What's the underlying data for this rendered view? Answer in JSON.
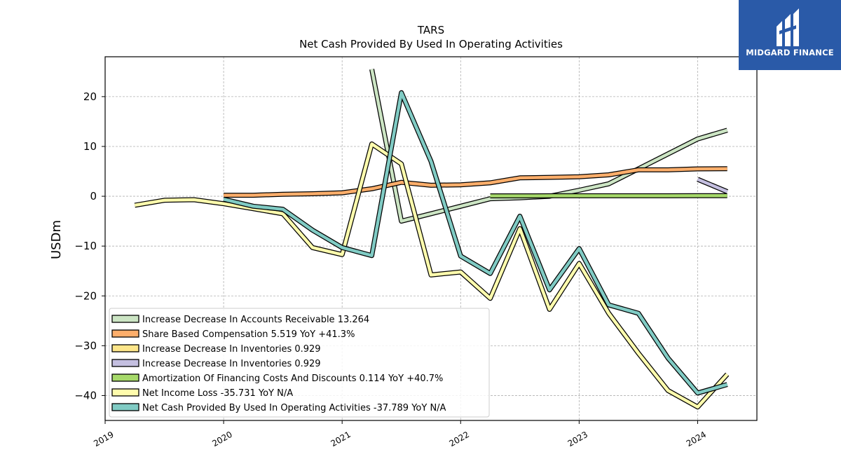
{
  "chart_data": {
    "type": "line",
    "title": "TARS",
    "subtitle": "Net Cash Provided By Used In Operating Activities",
    "ylabel": "USDm",
    "xlabel": "",
    "xlim": [
      2019.0,
      2024.5
    ],
    "ylim": [
      -45,
      28
    ],
    "x_ticks": [
      2019,
      2020,
      2021,
      2022,
      2023,
      2024
    ],
    "x_tick_labels": [
      "2019",
      "2020",
      "2021",
      "2022",
      "2023",
      "2024"
    ],
    "y_ticks": [
      -40,
      -30,
      -20,
      -10,
      0,
      10,
      20
    ],
    "y_tick_labels": [
      "−40",
      "−30",
      "−20",
      "−10",
      "0",
      "10",
      "20"
    ],
    "grid": true,
    "legend_position": "lower-left",
    "series": [
      {
        "name": "Increase Decrease In Accounts Receivable  13.264",
        "color": "#cce5c4",
        "points": [
          [
            2021.25,
            25.5
          ],
          [
            2021.5,
            -5
          ],
          [
            2021.75,
            -3.5
          ],
          [
            2022.0,
            -2
          ],
          [
            2022.25,
            -0.5
          ],
          [
            2022.5,
            -0.3
          ],
          [
            2022.75,
            0
          ],
          [
            2023.0,
            1.2
          ],
          [
            2023.25,
            2.5
          ],
          [
            2023.5,
            5.5
          ],
          [
            2023.75,
            8.5
          ],
          [
            2024.0,
            11.5
          ],
          [
            2024.25,
            13.264
          ]
        ]
      },
      {
        "name": "Share Based Compensation  5.519 YoY +41.3%",
        "color": "#fdae6b",
        "points": [
          [
            2020.0,
            0.2
          ],
          [
            2020.25,
            0.2
          ],
          [
            2020.5,
            0.4
          ],
          [
            2020.75,
            0.5
          ],
          [
            2021.0,
            0.7
          ],
          [
            2021.25,
            1.5
          ],
          [
            2021.5,
            2.8
          ],
          [
            2021.75,
            2.2
          ],
          [
            2022.0,
            2.3
          ],
          [
            2022.25,
            2.7
          ],
          [
            2022.5,
            3.7
          ],
          [
            2022.75,
            3.8
          ],
          [
            2023.0,
            3.9
          ],
          [
            2023.25,
            4.3
          ],
          [
            2023.5,
            5.3
          ],
          [
            2023.75,
            5.3
          ],
          [
            2024.0,
            5.5
          ],
          [
            2024.25,
            5.519
          ]
        ]
      },
      {
        "name": "Increase Decrease In Inventories  0.929",
        "color": "#fde68a",
        "points": []
      },
      {
        "name": "Increase Decrease In Inventories  0.929",
        "color": "#c4bfe0",
        "points": [
          [
            2024.0,
            3.4
          ],
          [
            2024.25,
            0.929
          ]
        ]
      },
      {
        "name": "Amortization Of Financing Costs And Discounts  0.114 YoY +40.7%",
        "color": "#a6d96a",
        "points": [
          [
            2022.25,
            0.08
          ],
          [
            2022.5,
            0.08
          ],
          [
            2022.75,
            0.09
          ],
          [
            2023.0,
            0.09
          ],
          [
            2023.25,
            0.09
          ],
          [
            2023.5,
            0.1
          ],
          [
            2023.75,
            0.1
          ],
          [
            2024.0,
            0.11
          ],
          [
            2024.25,
            0.114
          ]
        ]
      },
      {
        "name": "Net Income Loss  -35.731 YoY N/A",
        "color": "#fffcad",
        "points": [
          [
            2019.25,
            -1.8
          ],
          [
            2019.5,
            -0.8
          ],
          [
            2019.75,
            -0.7
          ],
          [
            2020.0,
            -1.5
          ],
          [
            2020.25,
            -2.5
          ],
          [
            2020.5,
            -3.5
          ],
          [
            2020.75,
            -10.3
          ],
          [
            2021.0,
            -11.7
          ],
          [
            2021.25,
            10.5
          ],
          [
            2021.5,
            6.5
          ],
          [
            2021.75,
            -15.8
          ],
          [
            2022.0,
            -15.2
          ],
          [
            2022.25,
            -20.5
          ],
          [
            2022.5,
            -6.5
          ],
          [
            2022.75,
            -22.7
          ],
          [
            2023.0,
            -13.5
          ],
          [
            2023.25,
            -23.5
          ],
          [
            2023.5,
            -31.5
          ],
          [
            2023.75,
            -39
          ],
          [
            2024.0,
            -42.3
          ],
          [
            2024.25,
            -35.731
          ]
        ]
      },
      {
        "name": "Net Cash Provided By Used In Operating Activities  -37.789 YoY N/A",
        "color": "#80cbc4",
        "points": [
          [
            2020.0,
            -0.6
          ],
          [
            2020.25,
            -2
          ],
          [
            2020.5,
            -2.6
          ],
          [
            2020.75,
            -6.8
          ],
          [
            2021.0,
            -10.3
          ],
          [
            2021.25,
            -11.9
          ],
          [
            2021.5,
            20.8
          ],
          [
            2021.75,
            7
          ],
          [
            2022.0,
            -12
          ],
          [
            2022.25,
            -15.5
          ],
          [
            2022.5,
            -4
          ],
          [
            2022.75,
            -18.8
          ],
          [
            2023.0,
            -10.5
          ],
          [
            2023.25,
            -21.8
          ],
          [
            2023.5,
            -23.5
          ],
          [
            2023.75,
            -32.5
          ],
          [
            2024.0,
            -39.5
          ],
          [
            2024.25,
            -37.789
          ]
        ]
      }
    ]
  },
  "logo": {
    "text": "MIDGARD FINANCE",
    "color": "#2a5aa8"
  }
}
